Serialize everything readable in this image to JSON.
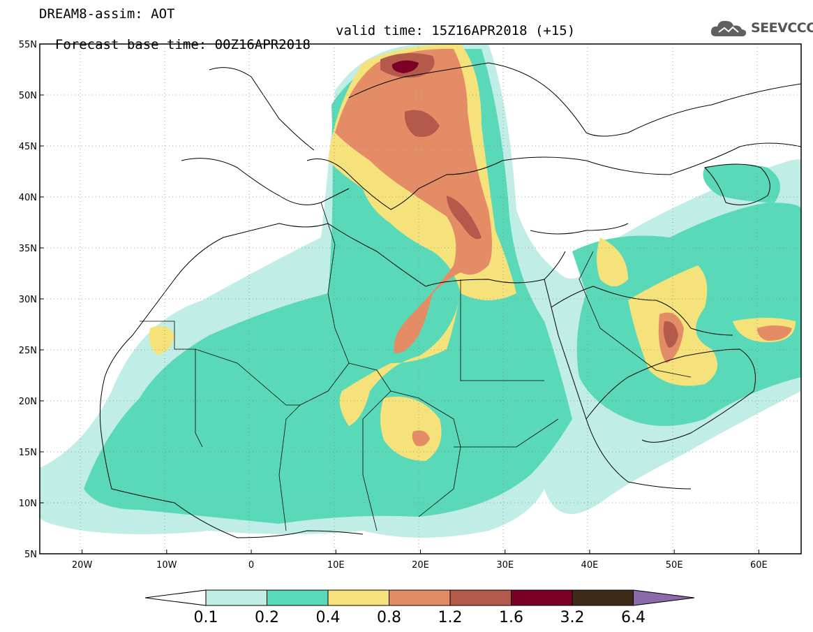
{
  "title": {
    "line1": "DREAM8-assim: AOT",
    "base_time": "Forecast base time: 00Z16APR2018",
    "valid_time": "valid time: 15Z16APR2018 (+15)"
  },
  "logo": {
    "text": "SEEVCCC",
    "icon": "cloud-icon"
  },
  "map": {
    "lon_range": [
      -25,
      65
    ],
    "lat_range": [
      5,
      55
    ],
    "x_ticks": [
      "20W",
      "10W",
      "0",
      "10E",
      "20E",
      "30E",
      "40E",
      "50E",
      "60E"
    ],
    "y_ticks": [
      "5N",
      "10N",
      "15N",
      "20N",
      "25N",
      "30N",
      "35N",
      "40N",
      "45N",
      "50N",
      "55N"
    ],
    "grid": "dotted"
  },
  "colorbar": {
    "levels": [
      "0.1",
      "0.2",
      "0.4",
      "0.8",
      "1.2",
      "1.6",
      "3.2",
      "6.4"
    ],
    "colors": [
      "#ffffff",
      "#c0ede6",
      "#5ad9b8",
      "#f5e27a",
      "#e48c66",
      "#b35a4a",
      "#7c0026",
      "#3d2a17",
      "#8a6aa8"
    ]
  }
}
